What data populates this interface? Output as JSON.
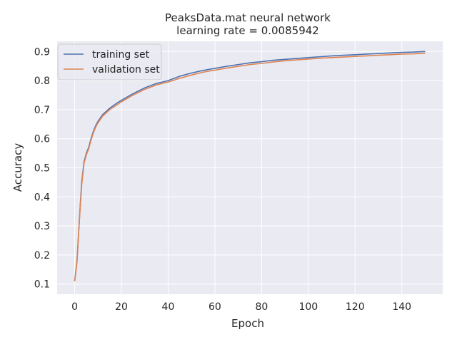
{
  "chart_data": {
    "type": "line",
    "title": "PeaksData.mat neural network",
    "subtitle": "learning rate =    0.0085942",
    "xlabel": "Epoch",
    "ylabel": "Accuracy",
    "xlim": [
      -7.5,
      157.5
    ],
    "ylim": [
      0.065,
      0.935
    ],
    "xticks": [
      0,
      20,
      40,
      60,
      80,
      100,
      120,
      140
    ],
    "yticks": [
      0.1,
      0.2,
      0.3,
      0.4,
      0.5,
      0.6,
      0.7,
      0.8,
      0.9
    ],
    "grid": true,
    "legend_position": "top-left",
    "background_color": "#eaeaf2",
    "grid_color": "#ffffff",
    "series": [
      {
        "name": "training set",
        "color": "#4c72b0",
        "x": [
          0,
          1,
          2,
          3,
          4,
          5,
          6,
          7,
          8,
          9,
          10,
          12,
          15,
          18,
          20,
          25,
          30,
          35,
          40,
          45,
          50,
          55,
          60,
          65,
          70,
          75,
          80,
          85,
          90,
          95,
          100,
          105,
          110,
          115,
          120,
          125,
          130,
          135,
          140,
          145,
          150
        ],
        "y": [
          0.11,
          0.18,
          0.32,
          0.45,
          0.52,
          0.55,
          0.57,
          0.6,
          0.625,
          0.645,
          0.66,
          0.683,
          0.705,
          0.722,
          0.732,
          0.755,
          0.775,
          0.79,
          0.8,
          0.815,
          0.826,
          0.835,
          0.842,
          0.849,
          0.855,
          0.861,
          0.865,
          0.87,
          0.873,
          0.876,
          0.879,
          0.882,
          0.885,
          0.887,
          0.889,
          0.891,
          0.893,
          0.895,
          0.897,
          0.898,
          0.9
        ]
      },
      {
        "name": "validation set",
        "color": "#dd8452",
        "x": [
          0,
          1,
          2,
          3,
          4,
          5,
          6,
          7,
          8,
          9,
          10,
          12,
          15,
          18,
          20,
          25,
          30,
          35,
          40,
          45,
          50,
          55,
          60,
          65,
          70,
          75,
          80,
          85,
          90,
          95,
          100,
          105,
          110,
          115,
          120,
          125,
          130,
          135,
          140,
          145,
          150
        ],
        "y": [
          0.11,
          0.175,
          0.315,
          0.44,
          0.515,
          0.545,
          0.565,
          0.595,
          0.62,
          0.64,
          0.655,
          0.678,
          0.7,
          0.716,
          0.727,
          0.75,
          0.77,
          0.785,
          0.795,
          0.808,
          0.819,
          0.829,
          0.836,
          0.843,
          0.849,
          0.855,
          0.859,
          0.864,
          0.868,
          0.871,
          0.874,
          0.877,
          0.879,
          0.881,
          0.883,
          0.885,
          0.887,
          0.889,
          0.891,
          0.892,
          0.894
        ]
      }
    ]
  }
}
